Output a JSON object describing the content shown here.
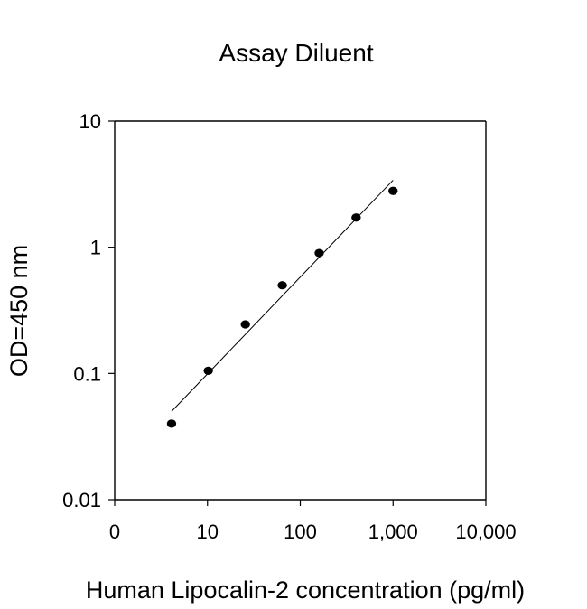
{
  "chart_data": {
    "type": "scatter",
    "title": "Assay Diluent",
    "xlabel": "Human Lipocalin-2 concentration (pg/ml)",
    "ylabel": "OD=450 nm",
    "x_scale": "log",
    "y_scale": "log",
    "xlim": [
      1,
      10000
    ],
    "ylim": [
      0.01,
      10
    ],
    "x_ticks": [
      {
        "value": 1,
        "label": "0"
      },
      {
        "value": 10,
        "label": "10"
      },
      {
        "value": 100,
        "label": "100"
      },
      {
        "value": 1000,
        "label": "1,000"
      },
      {
        "value": 10000,
        "label": "10,000"
      }
    ],
    "y_ticks": [
      {
        "value": 0.01,
        "label": "0.01"
      },
      {
        "value": 0.1,
        "label": "0.1"
      },
      {
        "value": 1,
        "label": "1"
      },
      {
        "value": 10,
        "label": "10"
      }
    ],
    "series": [
      {
        "points": [
          {
            "x": 4.1,
            "y": 0.04
          },
          {
            "x": 10.2,
            "y": 0.105
          },
          {
            "x": 25.6,
            "y": 0.245
          },
          {
            "x": 64,
            "y": 0.5
          },
          {
            "x": 160,
            "y": 0.9
          },
          {
            "x": 400,
            "y": 1.72
          },
          {
            "x": 1000,
            "y": 2.8
          }
        ]
      }
    ],
    "fit_line": {
      "x": [
        4.1,
        1000
      ],
      "y": [
        0.05,
        3.4
      ]
    },
    "grid": false,
    "legend": "none"
  }
}
